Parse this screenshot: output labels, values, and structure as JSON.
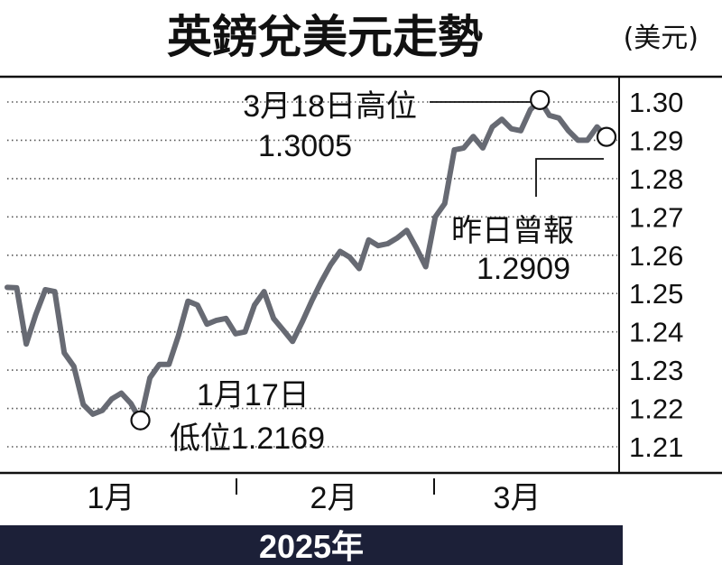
{
  "chart_data": {
    "type": "line",
    "title": "英鎊兌美元走勢",
    "unit": "(美元)",
    "ylim": [
      1.205,
      1.305
    ],
    "y_ticks": [
      "1.30",
      "1.29",
      "1.28",
      "1.27",
      "1.26",
      "1.25",
      "1.24",
      "1.23",
      "1.22",
      "1.21"
    ],
    "y_tick_values": [
      1.3,
      1.29,
      1.28,
      1.27,
      1.26,
      1.25,
      1.24,
      1.23,
      1.22,
      1.21
    ],
    "x_tick_labels": [
      "1月",
      "2月",
      "3月"
    ],
    "year_label": "2025年",
    "grid": "horizontal-dotted",
    "series": [
      {
        "color": "#676a73",
        "values": [
          1.2516,
          1.2515,
          1.2368,
          1.2445,
          1.251,
          1.2505,
          1.2345,
          1.231,
          1.221,
          1.2185,
          1.2195,
          1.2225,
          1.224,
          1.2213,
          1.2169,
          1.228,
          1.2315,
          1.2315,
          1.239,
          1.248,
          1.247,
          1.242,
          1.243,
          1.2435,
          1.2395,
          1.24,
          1.247,
          1.2505,
          1.2435,
          1.2405,
          1.2375,
          1.2425,
          1.248,
          1.253,
          1.2575,
          1.261,
          1.2595,
          1.2565,
          1.264,
          1.2625,
          1.263,
          1.2645,
          1.2665,
          1.262,
          1.257,
          1.27,
          1.2735,
          1.2875,
          1.288,
          1.291,
          1.288,
          1.2935,
          1.2955,
          1.293,
          1.2925,
          1.298,
          1.3005,
          1.2965,
          1.2958,
          1.2925,
          1.29,
          1.29,
          1.2935,
          1.2909
        ]
      }
    ],
    "annotations": [
      {
        "point_index": 14,
        "value": 1.2169,
        "line1": "1月17日",
        "line2": "低位1.2169"
      },
      {
        "point_index": 56,
        "value": 1.3005,
        "line1": "3月18日高位",
        "line2": "1.3005"
      },
      {
        "point_index": 63,
        "value": 1.2909,
        "line1": "昨日曾報",
        "line2": "1.2909"
      }
    ]
  }
}
